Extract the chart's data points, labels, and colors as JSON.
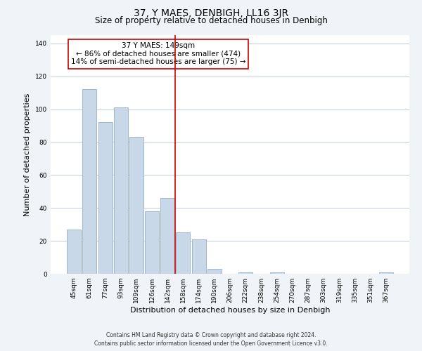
{
  "title": "37, Y MAES, DENBIGH, LL16 3JR",
  "subtitle": "Size of property relative to detached houses in Denbigh",
  "xlabel": "Distribution of detached houses by size in Denbigh",
  "ylabel": "Number of detached properties",
  "footer_lines": [
    "Contains HM Land Registry data © Crown copyright and database right 2024.",
    "Contains public sector information licensed under the Open Government Licence v3.0."
  ],
  "bar_labels": [
    "45sqm",
    "61sqm",
    "77sqm",
    "93sqm",
    "109sqm",
    "126sqm",
    "142sqm",
    "158sqm",
    "174sqm",
    "190sqm",
    "206sqm",
    "222sqm",
    "238sqm",
    "254sqm",
    "270sqm",
    "287sqm",
    "303sqm",
    "319sqm",
    "335sqm",
    "351sqm",
    "367sqm"
  ],
  "bar_values": [
    27,
    112,
    92,
    101,
    83,
    38,
    46,
    25,
    21,
    3,
    0,
    1,
    0,
    1,
    0,
    0,
    0,
    0,
    0,
    0,
    1
  ],
  "bar_color": "#c8d8e8",
  "bar_edge_color": "#a0b8cc",
  "reference_line_x": 6.5,
  "reference_line_color": "#cc0000",
  "annotation_box": {
    "title": "37 Y MAES: 149sqm",
    "line1": "← 86% of detached houses are smaller (474)",
    "line2": "14% of semi-detached houses are larger (75) →",
    "box_color": "#ffffff",
    "border_color": "#cc0000",
    "fontsize": 7.5
  },
  "ylim": [
    0,
    145
  ],
  "yticks": [
    0,
    20,
    40,
    60,
    80,
    100,
    120,
    140
  ],
  "bg_color": "#f0f4f8",
  "plot_bg_color": "#ffffff",
  "grid_color": "#c0ccd8",
  "title_fontsize": 10,
  "subtitle_fontsize": 8.5,
  "axis_label_fontsize": 8,
  "tick_fontsize": 6.5,
  "footer_fontsize": 5.5
}
